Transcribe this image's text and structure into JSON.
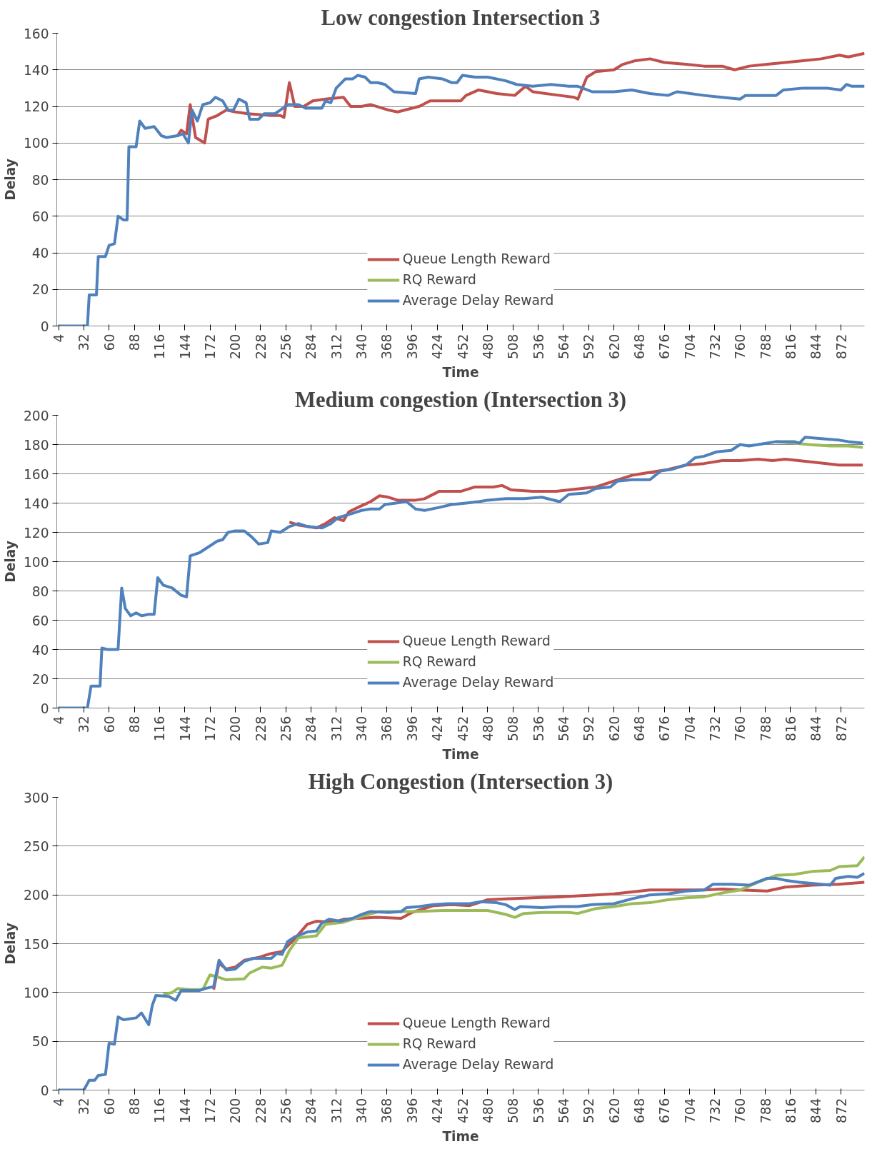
{
  "chart_data": [
    {
      "type": "line",
      "title": "Low congestion Intersection 3",
      "xlabel": "Time",
      "ylabel": "Delay",
      "xlim": [
        2,
        898
      ],
      "xticks": [
        4,
        32,
        60,
        88,
        116,
        144,
        172,
        200,
        228,
        256,
        284,
        312,
        340,
        368,
        396,
        424,
        452,
        480,
        508,
        536,
        564,
        592,
        620,
        648,
        676,
        704,
        732,
        760,
        788,
        816,
        844,
        872
      ],
      "ylim": [
        0,
        160
      ],
      "yticks": [
        0,
        20,
        40,
        60,
        80,
        100,
        120,
        140,
        160
      ],
      "grid": "y",
      "legend": "bottom",
      "marker": "none",
      "line_style": "solid",
      "tick_labels": true,
      "series": [
        {
          "name": "Queue Length Reward",
          "color": "#c0504d",
          "x": [
            136,
            140,
            146,
            150,
            156,
            166,
            170,
            180,
            190,
            200,
            214,
            240,
            250,
            254,
            260,
            266,
            276,
            286,
            300,
            320,
            328,
            340,
            350,
            370,
            380,
            396,
            404,
            416,
            430,
            450,
            456,
            470,
            490,
            510,
            522,
            530,
            560,
            576,
            580,
            590,
            600,
            620,
            630,
            644,
            660,
            676,
            700,
            720,
            740,
            754,
            770,
            790,
            810,
            830,
            850,
            870,
            880,
            898
          ],
          "values": [
            104,
            107,
            105,
            121,
            103,
            100,
            113,
            115,
            118,
            117,
            116,
            115,
            115,
            114,
            133,
            120,
            120,
            123,
            124,
            125,
            120,
            120,
            121,
            118,
            117,
            119,
            120,
            123,
            123,
            123,
            126,
            129,
            127,
            126,
            131,
            128,
            126,
            125,
            124,
            136,
            139,
            140,
            143,
            145,
            146,
            144,
            143,
            142,
            142,
            140,
            142,
            143,
            144,
            145,
            146,
            148,
            147,
            149
          ]
        },
        {
          "name": "RQ Reward",
          "color": "#9bbb59"
        },
        {
          "name": "Average Delay Reward",
          "color": "#4f81bd",
          "x": [
            4,
            36,
            38,
            46,
            48,
            56,
            60,
            66,
            70,
            76,
            80,
            82,
            90,
            94,
            100,
            110,
            118,
            124,
            136,
            142,
            148,
            152,
            158,
            164,
            172,
            178,
            186,
            192,
            198,
            204,
            212,
            216,
            226,
            232,
            244,
            250,
            258,
            270,
            278,
            296,
            300,
            306,
            312,
            322,
            330,
            336,
            344,
            350,
            358,
            366,
            376,
            400,
            404,
            414,
            430,
            440,
            446,
            452,
            466,
            480,
            500,
            512,
            530,
            550,
            570,
            580,
            596,
            620,
            640,
            660,
            680,
            690,
            720,
            740,
            760,
            766,
            780,
            800,
            808,
            830,
            856,
            872,
            878,
            884,
            898
          ],
          "values": [
            0,
            0,
            17,
            17,
            38,
            38,
            44,
            45,
            60,
            58,
            58,
            98,
            98,
            112,
            108,
            109,
            104,
            103,
            104,
            105,
            100,
            118,
            112,
            121,
            122,
            125,
            123,
            118,
            118,
            124,
            122,
            113,
            113,
            116,
            116,
            118,
            121,
            121,
            119,
            119,
            123,
            122,
            130,
            135,
            135,
            137,
            136,
            133,
            133,
            132,
            128,
            127,
            135,
            136,
            135,
            133,
            133,
            137,
            136,
            136,
            134,
            132,
            131,
            132,
            131,
            131,
            128,
            128,
            129,
            127,
            126,
            128,
            126,
            125,
            124,
            126,
            126,
            126,
            129,
            130,
            130,
            129,
            132,
            131,
            131
          ]
        }
      ]
    },
    {
      "type": "line",
      "title": "Medium congestion (Intersection 3)",
      "xlabel": "Time",
      "ylabel": "Delay",
      "xlim": [
        2,
        898
      ],
      "xticks": [
        4,
        32,
        60,
        88,
        116,
        144,
        172,
        200,
        228,
        256,
        284,
        312,
        340,
        368,
        396,
        424,
        452,
        480,
        508,
        536,
        564,
        592,
        620,
        648,
        676,
        704,
        732,
        760,
        788,
        816,
        844,
        872
      ],
      "ylim": [
        0,
        200
      ],
      "yticks": [
        0,
        20,
        40,
        60,
        80,
        100,
        120,
        140,
        160,
        180,
        200
      ],
      "grid": "y",
      "legend": "bottom",
      "marker": "none",
      "line_style": "solid",
      "tick_labels": true,
      "series": [
        {
          "name": "Queue Length Reward",
          "color": "#c0504d",
          "x": [
            260,
            270,
            280,
            290,
            300,
            310,
            320,
            326,
            336,
            350,
            360,
            370,
            380,
            400,
            410,
            426,
            450,
            466,
            486,
            496,
            506,
            530,
            556,
            570,
            600,
            620,
            640,
            660,
            680,
            700,
            720,
            740,
            760,
            780,
            796,
            810,
            840,
            870,
            896
          ],
          "values": [
            127,
            125,
            124,
            123,
            126,
            130,
            128,
            134,
            137,
            141,
            145,
            144,
            142,
            142,
            143,
            148,
            148,
            151,
            151,
            152,
            149,
            148,
            148,
            149,
            151,
            155,
            159,
            161,
            163,
            166,
            167,
            169,
            169,
            170,
            169,
            170,
            168,
            166,
            166
          ]
        },
        {
          "name": "RQ Reward",
          "color": "#9bbb59",
          "x": [
            800,
            820,
            836,
            860,
            880,
            896
          ],
          "values": [
            182,
            181,
            180,
            179,
            179,
            178
          ]
        },
        {
          "name": "Average Delay Reward",
          "color": "#4f81bd",
          "x": [
            4,
            36,
            40,
            50,
            52,
            58,
            66,
            70,
            74,
            78,
            84,
            90,
            96,
            104,
            110,
            114,
            120,
            130,
            140,
            146,
            150,
            160,
            170,
            180,
            186,
            192,
            200,
            210,
            218,
            226,
            236,
            240,
            250,
            260,
            270,
            280,
            296,
            306,
            314,
            330,
            340,
            350,
            360,
            366,
            390,
            400,
            410,
            426,
            440,
            456,
            470,
            480,
            500,
            520,
            540,
            560,
            570,
            590,
            600,
            616,
            624,
            640,
            660,
            672,
            684,
            700,
            710,
            720,
            734,
            750,
            760,
            770,
            790,
            800,
            820,
            826,
            832,
            850,
            870,
            880,
            896
          ],
          "values": [
            0,
            0,
            15,
            15,
            41,
            40,
            40,
            40,
            82,
            68,
            63,
            65,
            63,
            64,
            64,
            89,
            84,
            82,
            77,
            76,
            104,
            106,
            110,
            114,
            115,
            120,
            121,
            121,
            117,
            112,
            113,
            121,
            120,
            124,
            126,
            124,
            123,
            126,
            130,
            133,
            135,
            136,
            136,
            139,
            141,
            136,
            135,
            137,
            139,
            140,
            141,
            142,
            143,
            143,
            144,
            141,
            146,
            147,
            150,
            151,
            155,
            156,
            156,
            162,
            163,
            166,
            171,
            172,
            175,
            176,
            180,
            179,
            181,
            182,
            182,
            181,
            185,
            184,
            183,
            182,
            181
          ]
        }
      ]
    },
    {
      "type": "line",
      "title": "High Congestion (Intersection 3)",
      "xlabel": "Time",
      "ylabel": "Delay",
      "xlim": [
        2,
        898
      ],
      "xticks": [
        4,
        32,
        60,
        88,
        116,
        144,
        172,
        200,
        228,
        256,
        284,
        312,
        340,
        368,
        396,
        424,
        452,
        480,
        508,
        536,
        564,
        592,
        620,
        648,
        676,
        704,
        732,
        760,
        788,
        816,
        844,
        872
      ],
      "ylim": [
        0,
        300
      ],
      "yticks": [
        0,
        50,
        100,
        150,
        200,
        250,
        300
      ],
      "grid": "y",
      "legend": "bottom",
      "marker": "none",
      "line_style": "solid",
      "tick_labels": true,
      "series": [
        {
          "name": "Queue Length Reward",
          "color": "#c0504d",
          "x": [
            176,
            182,
            190,
            200,
            210,
            226,
            240,
            252,
            266,
            280,
            290,
            310,
            320,
            356,
            384,
            396,
            420,
            440,
            460,
            480,
            500,
            530,
            560,
            580,
            600,
            620,
            640,
            660,
            680,
            700,
            720,
            740,
            760,
            790,
            810,
            840,
            870,
            898
          ],
          "values": [
            103,
            130,
            124,
            126,
            133,
            136,
            140,
            142,
            155,
            170,
            173,
            172,
            175,
            177,
            176,
            182,
            189,
            190,
            189,
            195,
            196,
            197,
            198,
            199,
            200,
            201,
            203,
            205,
            205,
            205,
            205,
            206,
            205,
            204,
            208,
            210,
            211,
            213
          ]
        },
        {
          "name": "RQ Reward",
          "color": "#9bbb59",
          "x": [
            120,
            130,
            136,
            150,
            164,
            172,
            180,
            190,
            210,
            216,
            230,
            240,
            252,
            260,
            270,
            290,
            300,
            320,
            340,
            360,
            380,
            400,
            430,
            460,
            480,
            500,
            510,
            520,
            540,
            570,
            580,
            600,
            620,
            640,
            660,
            680,
            700,
            720,
            740,
            760,
            780,
            800,
            820,
            840,
            860,
            870,
            890,
            898
          ],
          "values": [
            98,
            100,
            104,
            103,
            103,
            118,
            116,
            113,
            114,
            120,
            126,
            125,
            128,
            143,
            156,
            158,
            170,
            172,
            178,
            183,
            183,
            183,
            184,
            184,
            184,
            180,
            177,
            181,
            182,
            182,
            181,
            186,
            188,
            191,
            192,
            195,
            197,
            198,
            202,
            205,
            213,
            220,
            221,
            224,
            225,
            229,
            230,
            239
          ]
        },
        {
          "name": "Average Delay Reward",
          "color": "#4f81bd",
          "x": [
            4,
            32,
            38,
            44,
            48,
            56,
            60,
            66,
            70,
            76,
            90,
            96,
            104,
            108,
            112,
            126,
            134,
            140,
            160,
            166,
            176,
            182,
            190,
            200,
            210,
            220,
            240,
            246,
            252,
            258,
            266,
            280,
            290,
            296,
            304,
            316,
            330,
            340,
            350,
            370,
            384,
            390,
            404,
            420,
            436,
            460,
            472,
            490,
            500,
            510,
            516,
            540,
            560,
            580,
            596,
            620,
            640,
            660,
            680,
            700,
            720,
            730,
            750,
            770,
            790,
            800,
            810,
            826,
            850,
            860,
            866,
            880,
            890,
            898
          ],
          "values": [
            0,
            0,
            10,
            10,
            15,
            16,
            48,
            47,
            75,
            72,
            74,
            79,
            67,
            87,
            97,
            96,
            92,
            102,
            102,
            104,
            106,
            133,
            123,
            124,
            132,
            135,
            135,
            140,
            139,
            152,
            157,
            162,
            163,
            171,
            175,
            173,
            176,
            180,
            183,
            182,
            183,
            187,
            188,
            190,
            191,
            191,
            193,
            192,
            190,
            185,
            188,
            187,
            188,
            188,
            190,
            191,
            196,
            200,
            201,
            204,
            205,
            211,
            211,
            210,
            217,
            217,
            215,
            213,
            211,
            210,
            217,
            219,
            218,
            222
          ]
        }
      ]
    }
  ]
}
